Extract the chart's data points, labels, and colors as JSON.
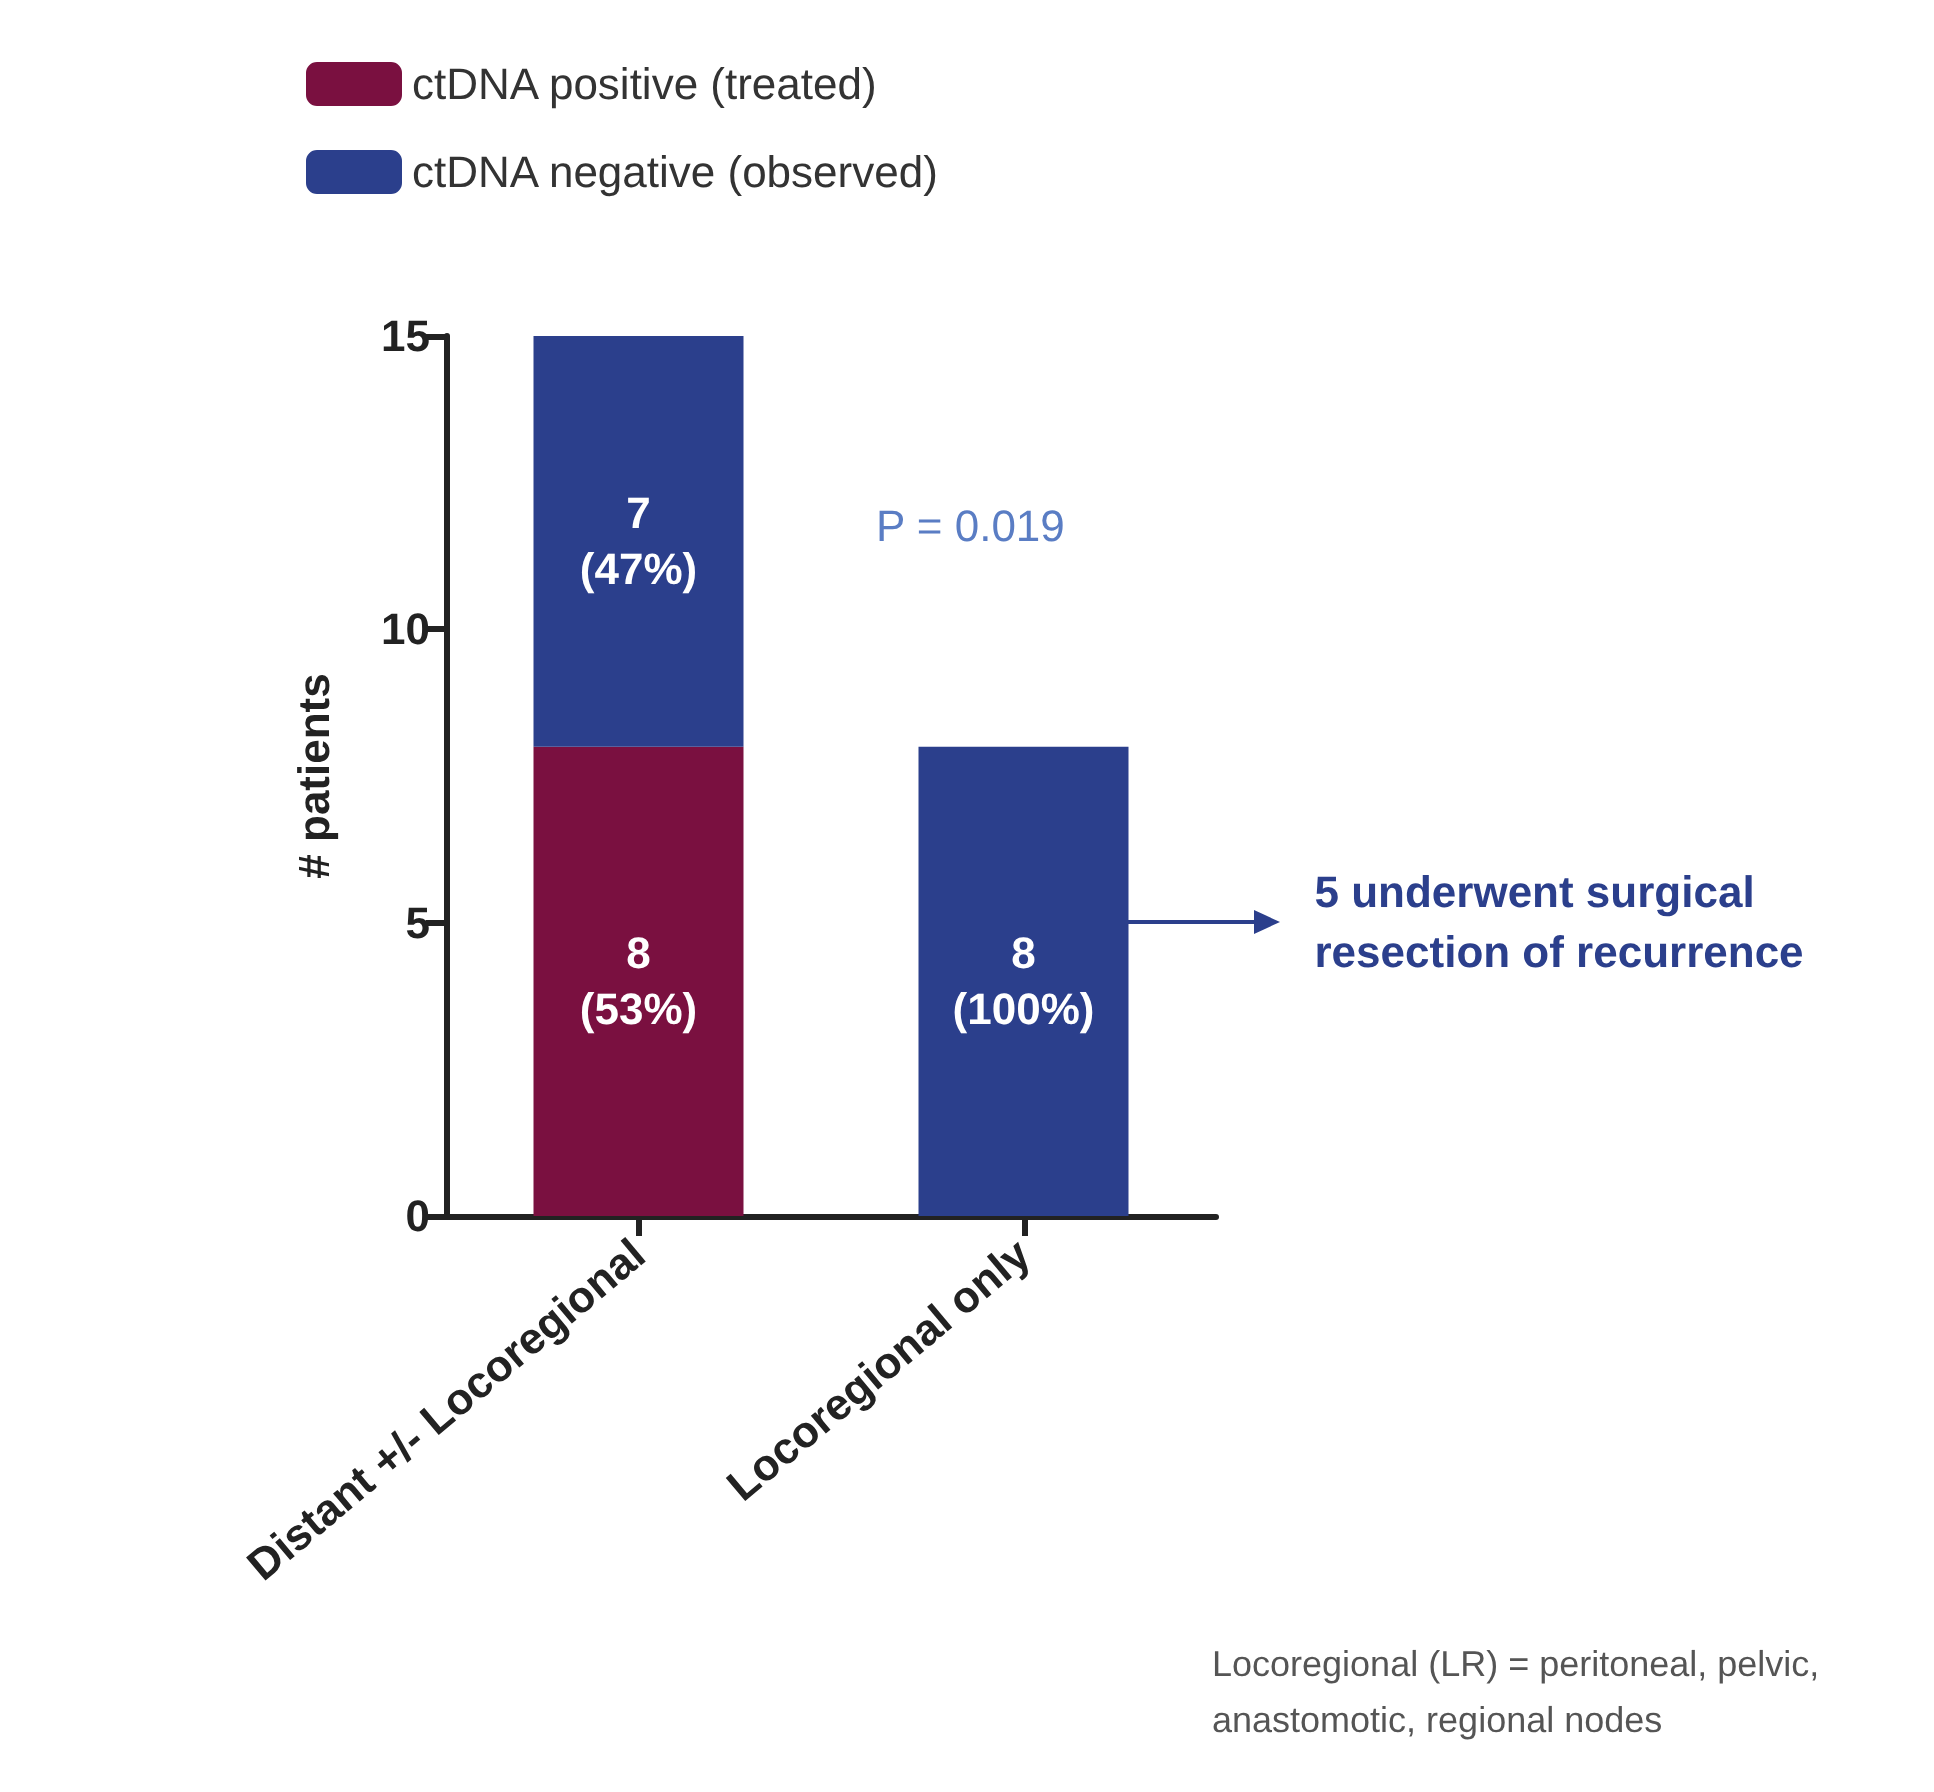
{
  "chart_data": {
    "type": "bar",
    "stacked": true,
    "categories": [
      "Distant +/- Locoregional",
      "Locoregional only"
    ],
    "ylabel": "# patients",
    "ylim": [
      0,
      15
    ],
    "yticks": [
      0,
      5,
      10,
      15
    ],
    "grid": false,
    "legend": "top left",
    "series": [
      {
        "name": "ctDNA positive (treated)",
        "color": "#7a1040",
        "values": [
          8,
          0
        ],
        "value_labels": [
          "8\n(53%)",
          null
        ]
      },
      {
        "name": "ctDNA negative (observed)",
        "color": "#2b3f8c",
        "values": [
          7,
          8
        ],
        "value_labels": [
          "7\n(47%)",
          "8\n(100%)"
        ]
      }
    ],
    "annotations": [
      "P = 0.019",
      "5 underwent surgical\nresection of recurrence",
      "Locoregional (LR) = peritoneal, pelvic,\nanastomotic, regional nodes"
    ]
  }
}
